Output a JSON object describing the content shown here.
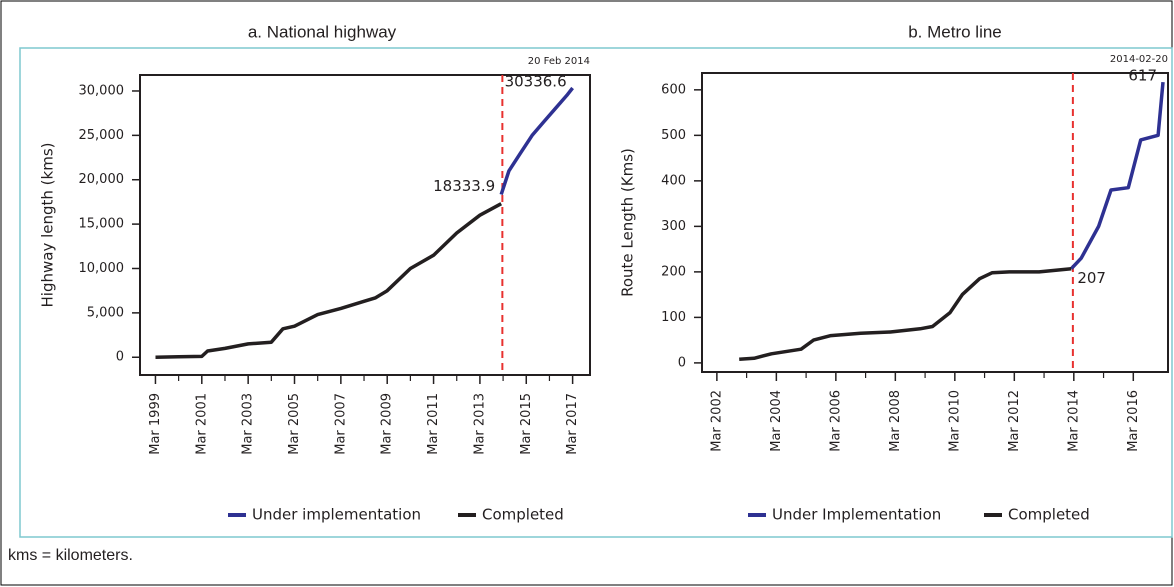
{
  "chart_data": [
    {
      "type": "line",
      "title": "a. National highway",
      "ylabel": "Highway length (kms)",
      "xlim": [
        "1998-07",
        "2017-12"
      ],
      "xticks": [
        {
          "value": "1999-03",
          "label": "Mar 1999"
        },
        {
          "value": "2001-03",
          "label": "Mar 2001"
        },
        {
          "value": "2003-03",
          "label": "Mar 2003"
        },
        {
          "value": "2005-03",
          "label": "Mar 2005"
        },
        {
          "value": "2007-03",
          "label": "Mar 2007"
        },
        {
          "value": "2009-03",
          "label": "Mar 2009"
        },
        {
          "value": "2011-03",
          "label": "Mar 2011"
        },
        {
          "value": "2013-03",
          "label": "Mar 2013"
        },
        {
          "value": "2015-03",
          "label": "Mar 2015"
        },
        {
          "value": "2017-03",
          "label": "Mar 2017"
        }
      ],
      "ylim": [
        -2000,
        31800
      ],
      "yticks": [
        0,
        {
          "value": 5000,
          "label": "5,000"
        },
        {
          "value": 10000,
          "label": "10,000"
        },
        {
          "value": 15000,
          "label": "15,000"
        },
        {
          "value": 20000,
          "label": "20,000"
        },
        {
          "value": 25000,
          "label": "25,000"
        },
        {
          "value": 30000,
          "label": "30,000"
        }
      ],
      "vline": {
        "x": "2014-02-20",
        "label": "20 Feb 2014",
        "color": "#e8312f"
      },
      "legend": "bottom",
      "series": [
        {
          "name": "Under implementation",
          "color": "#2e3192",
          "x": [
            "2014-02",
            "2014-06",
            "2014-12",
            "2015-06",
            "2015-12",
            "2016-06",
            "2016-12",
            "2017-03"
          ],
          "values": [
            18333.9,
            21000,
            23000,
            25000,
            26500,
            28000,
            29500,
            30336.6
          ],
          "value_labels": [
            "18333.9",
            null,
            null,
            null,
            null,
            null,
            null,
            "30336.6"
          ]
        },
        {
          "name": "Completed",
          "color": "#231f20",
          "x": [
            "1999-03",
            "2000-03",
            "2001-03",
            "2001-06",
            "2002-03",
            "2003-03",
            "2004-03",
            "2004-09",
            "2005-03",
            "2006-03",
            "2007-03",
            "2008-03",
            "2008-09",
            "2009-03",
            "2010-03",
            "2011-03",
            "2012-03",
            "2013-03",
            "2014-02"
          ],
          "values": [
            0,
            50,
            100,
            700,
            1000,
            1500,
            1700,
            3200,
            3500,
            4800,
            5500,
            6300,
            6700,
            7500,
            10000,
            11500,
            14000,
            16000,
            17300
          ]
        }
      ]
    },
    {
      "type": "line",
      "title": "b. Metro line",
      "ylabel": "Route Length (Kms)",
      "xlim": [
        "2001-09",
        "2017-05"
      ],
      "xticks": [
        {
          "value": "2002-03",
          "label": "Mar 2002"
        },
        {
          "value": "2004-03",
          "label": "Mar 2004"
        },
        {
          "value": "2006-03",
          "label": "Mar 2006"
        },
        {
          "value": "2008-03",
          "label": "Mar 2008"
        },
        {
          "value": "2010-03",
          "label": "Mar 2010"
        },
        {
          "value": "2012-03",
          "label": "Mar 2012"
        },
        {
          "value": "2014-03",
          "label": "Mar 2014"
        },
        {
          "value": "2016-03",
          "label": "Mar 2016"
        }
      ],
      "ylim": [
        -20,
        637
      ],
      "yticks": [
        0,
        100,
        200,
        300,
        400,
        500,
        600
      ],
      "vline": {
        "x": "2014-02-20",
        "label": "2014-02-20",
        "color": "#e8312f"
      },
      "legend": "bottom",
      "series": [
        {
          "name": "Under Implementation",
          "color": "#2e3192",
          "x": [
            "2014-02",
            "2014-06",
            "2015-01",
            "2015-06",
            "2016-01",
            "2016-06",
            "2017-01",
            "2017-03"
          ],
          "values": [
            207,
            230,
            300,
            380,
            385,
            490,
            500,
            617
          ],
          "value_labels": [
            null,
            null,
            null,
            null,
            null,
            null,
            null,
            "617"
          ]
        },
        {
          "name": "Completed",
          "color": "#231f20",
          "x": [
            "2002-12",
            "2003-06",
            "2004-01",
            "2005-01",
            "2005-06",
            "2006-01",
            "2007-01",
            "2008-01",
            "2009-01",
            "2009-06",
            "2010-01",
            "2010-06",
            "2011-01",
            "2011-06",
            "2012-01",
            "2013-01",
            "2014-02"
          ],
          "values": [
            8,
            10,
            20,
            30,
            50,
            60,
            65,
            68,
            75,
            80,
            110,
            150,
            185,
            198,
            200,
            200,
            207
          ],
          "value_labels": [
            null,
            null,
            null,
            null,
            null,
            null,
            null,
            null,
            null,
            null,
            null,
            null,
            null,
            null,
            null,
            null,
            "207"
          ]
        }
      ]
    }
  ],
  "footnote": "kms = kilometers."
}
